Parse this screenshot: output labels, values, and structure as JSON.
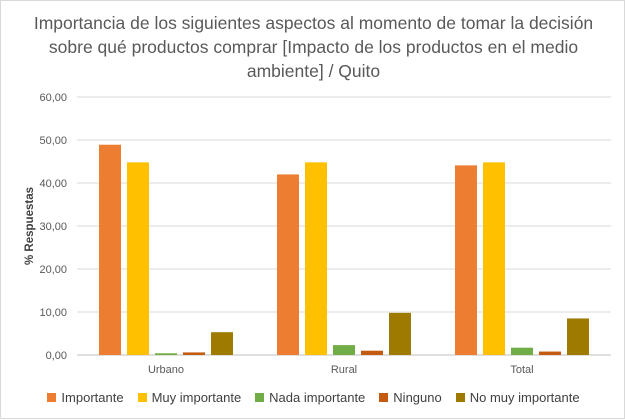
{
  "chart_data": {
    "type": "bar",
    "title": "Importancia de los siguientes aspectos al momento de tomar la decisión sobre qué productos comprar [Impacto de los productos en el medio ambiente] / Quito",
    "xlabel": "",
    "ylabel": "% Respuestas",
    "ylim": [
      0,
      60
    ],
    "yticks": [
      "0,00",
      "10,00",
      "20,00",
      "30,00",
      "40,00",
      "50,00",
      "60,00"
    ],
    "grid": true,
    "legend_position": "bottom",
    "categories": [
      "Urbano",
      "Rural",
      "Total"
    ],
    "series": [
      {
        "name": "Importante",
        "color": "#ED7D31",
        "values": [
          48.9,
          42.0,
          44.1
        ]
      },
      {
        "name": "Muy importante",
        "color": "#FFC000",
        "values": [
          44.8,
          44.8,
          44.8
        ]
      },
      {
        "name": "Nada importante",
        "color": "#70AD47",
        "values": [
          0.4,
          2.3,
          1.7
        ]
      },
      {
        "name": "Ninguno",
        "color": "#C55A11",
        "values": [
          0.6,
          1.0,
          0.8
        ]
      },
      {
        "name": "No muy importante",
        "color": "#9E7A00",
        "values": [
          5.3,
          9.8,
          8.5
        ]
      }
    ]
  }
}
